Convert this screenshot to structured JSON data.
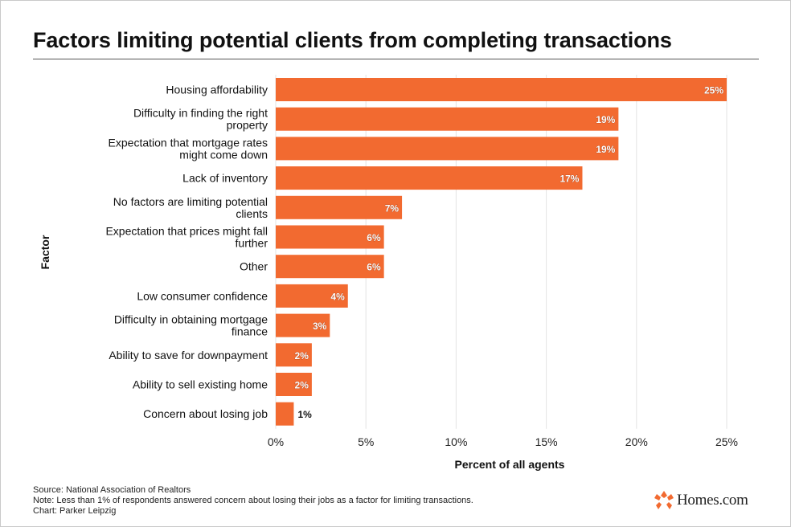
{
  "chart_data": {
    "type": "bar",
    "orientation": "horizontal",
    "title": "Factors limiting potential clients from completing transactions",
    "xlabel": "Percent of all agents",
    "ylabel": "Factor",
    "categories": [
      "Housing affordability",
      "Difficulty in finding the right property",
      "Expectation that mortgage rates might come down",
      "Lack of inventory",
      "No factors are limiting potential clients",
      "Expectation that prices might fall further",
      "Other",
      "Low consumer confidence",
      "Difficulty in obtaining mortgage finance",
      "Ability to save for downpayment",
      "Ability to sell existing home",
      "Concern about losing job"
    ],
    "values": [
      25,
      19,
      19,
      17,
      7,
      6,
      6,
      4,
      3,
      2,
      2,
      1
    ],
    "value_labels": [
      "25%",
      "19%",
      "19%",
      "17%",
      "7%",
      "6%",
      "6%",
      "4%",
      "3%",
      "2%",
      "2%",
      "1%"
    ],
    "xlim": [
      0,
      25
    ],
    "xticks": [
      0,
      5,
      10,
      15,
      20,
      25
    ],
    "xtick_labels": [
      "0%",
      "5%",
      "10%",
      "15%",
      "20%",
      "25%"
    ],
    "grid": "vertical",
    "bar_color": "#F26A30"
  },
  "footer": {
    "source": "Source: National Association of Realtors",
    "note": "Note: Less than 1% of respondents answered concern about losing their jobs as a factor for limiting transactions.",
    "credit": "Chart: Parker Leipzig"
  },
  "logo": {
    "text": "Homes.com",
    "icon": "homes-logo-icon",
    "color": "#F26A30"
  }
}
